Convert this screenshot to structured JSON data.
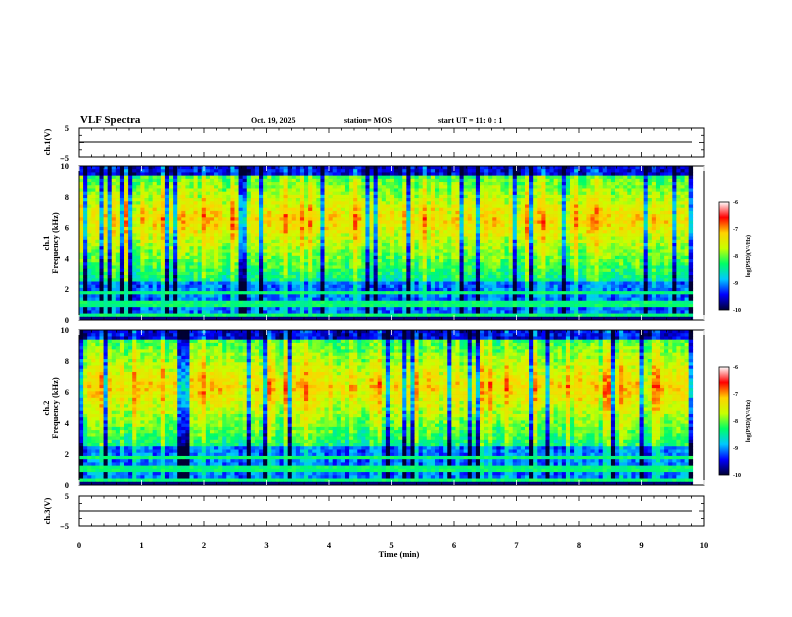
{
  "header": {
    "title": "VLF Spectra",
    "date": "Oct. 19, 2025",
    "station": "station= MOS",
    "start_ut": "start  UT =   11: 0  : 1"
  },
  "colors": {
    "cmap": [
      "#000033",
      "#0000ff",
      "#00c8ff",
      "#00ff66",
      "#c8ff00",
      "#ffd200",
      "#ff0000",
      "#ffffff"
    ]
  },
  "chart_data": [
    {
      "id": "ch1_waveform",
      "type": "line",
      "ylabel": "ch.1(V)",
      "ylim": [
        -5,
        5
      ],
      "yticks": [
        5,
        -5
      ],
      "baseline_value": 0,
      "xlim": [
        0,
        10
      ]
    },
    {
      "id": "ch1_spectrogram",
      "type": "heatmap",
      "ylabel_line1": "ch.1",
      "ylabel_line2": "Frequency (kHz)",
      "ylim": [
        0,
        10
      ],
      "yticks": [
        "0",
        "2",
        "4",
        "6",
        "8",
        "10"
      ],
      "xlim": [
        0,
        10
      ],
      "data_extent_min": 9.82,
      "color_scale": {
        "label": "log(PSD)(V²/Hz)",
        "ticks": [
          "-6",
          "-7",
          "-8",
          "-9",
          "-10"
        ],
        "range": [
          -10,
          -6
        ]
      },
      "band_profile_kHz": {
        "high_noise_center": 6.5,
        "low_band_top": 2.5,
        "tones": [
          0.3,
          1.0,
          1.8
        ]
      }
    },
    {
      "id": "ch2_spectrogram",
      "type": "heatmap",
      "ylabel_line1": "ch.2",
      "ylabel_line2": "Frequency (kHz)",
      "ylim": [
        0,
        10
      ],
      "yticks": [
        "0",
        "2",
        "4",
        "6",
        "8",
        "10"
      ],
      "xlim": [
        0,
        10
      ],
      "data_extent_min": 9.82,
      "color_scale": {
        "label": "log(PSD)(V²/Hz)",
        "ticks": [
          "-6",
          "-7",
          "-8",
          "-9",
          "-10"
        ],
        "range": [
          -10,
          -6
        ]
      },
      "band_profile_kHz": {
        "high_noise_center": 6.3,
        "low_band_top": 2.5,
        "tones": [
          0.3,
          1.0,
          1.8
        ]
      }
    },
    {
      "id": "ch3_waveform",
      "type": "line",
      "ylabel": "ch.3(V)",
      "ylim": [
        -5,
        5
      ],
      "yticks": [
        5,
        -5
      ],
      "baseline_value": 0,
      "xlim": [
        0,
        10
      ]
    }
  ],
  "xaxis": {
    "label": "Time (min)",
    "ticks": [
      "0",
      "1",
      "2",
      "3",
      "4",
      "5",
      "6",
      "7",
      "8",
      "9",
      "10"
    ],
    "range": [
      0,
      10
    ]
  }
}
